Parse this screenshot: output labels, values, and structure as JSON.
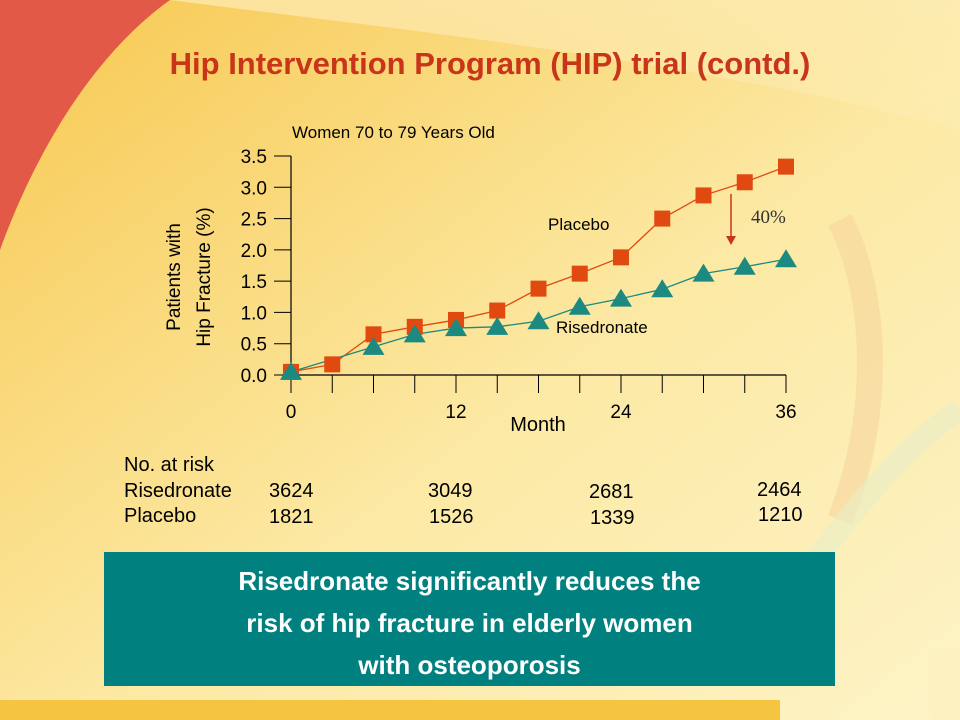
{
  "slide": {
    "title": "Hip Intervention Program (HIP) trial (contd.)",
    "colors": {
      "title": "#c8351a",
      "placebo": "#e04a10",
      "risedronate": "#1c8a80",
      "callout_bg": "#00807f",
      "background": "#fbe9a8"
    }
  },
  "chart_data": {
    "type": "line",
    "subtitle": "Women 70 to 79 Years Old",
    "ylabel_line1": "Patients with",
    "ylabel_line2": "Hip Fracture (%)",
    "xlabel": "Month",
    "xlim": [
      0,
      36
    ],
    "ylim": [
      0,
      3.5
    ],
    "y_ticks": [
      "0.0",
      "0.5",
      "1.0",
      "1.5",
      "2.0",
      "2.5",
      "3.0",
      "3.5"
    ],
    "x_tick_labels": [
      "0",
      "12",
      "24",
      "36"
    ],
    "x_ticks_minor": [
      0,
      3,
      6,
      9,
      12,
      15,
      18,
      21,
      24,
      27,
      30,
      33,
      36
    ],
    "series": [
      {
        "name": "Placebo",
        "marker": "square",
        "x": [
          0,
          3,
          6,
          9,
          12,
          15,
          18,
          21,
          24,
          27,
          30,
          33,
          36
        ],
        "y": [
          0.05,
          0.17,
          0.65,
          0.77,
          0.88,
          1.03,
          1.38,
          1.62,
          1.88,
          2.5,
          2.87,
          3.08,
          3.33
        ]
      },
      {
        "name": "Risedronate",
        "marker": "triangle",
        "x": [
          0,
          6,
          9,
          12,
          15,
          18,
          21,
          24,
          27,
          30,
          33,
          36
        ],
        "y": [
          0.05,
          0.45,
          0.65,
          0.75,
          0.77,
          0.86,
          1.09,
          1.22,
          1.37,
          1.62,
          1.73,
          1.85
        ]
      }
    ],
    "annotation": "40%",
    "at_risk": {
      "label": "No. at risk",
      "rows": [
        {
          "name": "Risedronate",
          "values": [
            "3624",
            "3049",
            "2681",
            "2464"
          ]
        },
        {
          "name": "Placebo",
          "values": [
            "1821",
            "1526",
            "1339",
            "1210"
          ]
        }
      ]
    }
  },
  "callout": {
    "line1": "Risedronate significantly reduces the",
    "line2": "risk of hip fracture in elderly women",
    "line3": "with osteoporosis"
  }
}
